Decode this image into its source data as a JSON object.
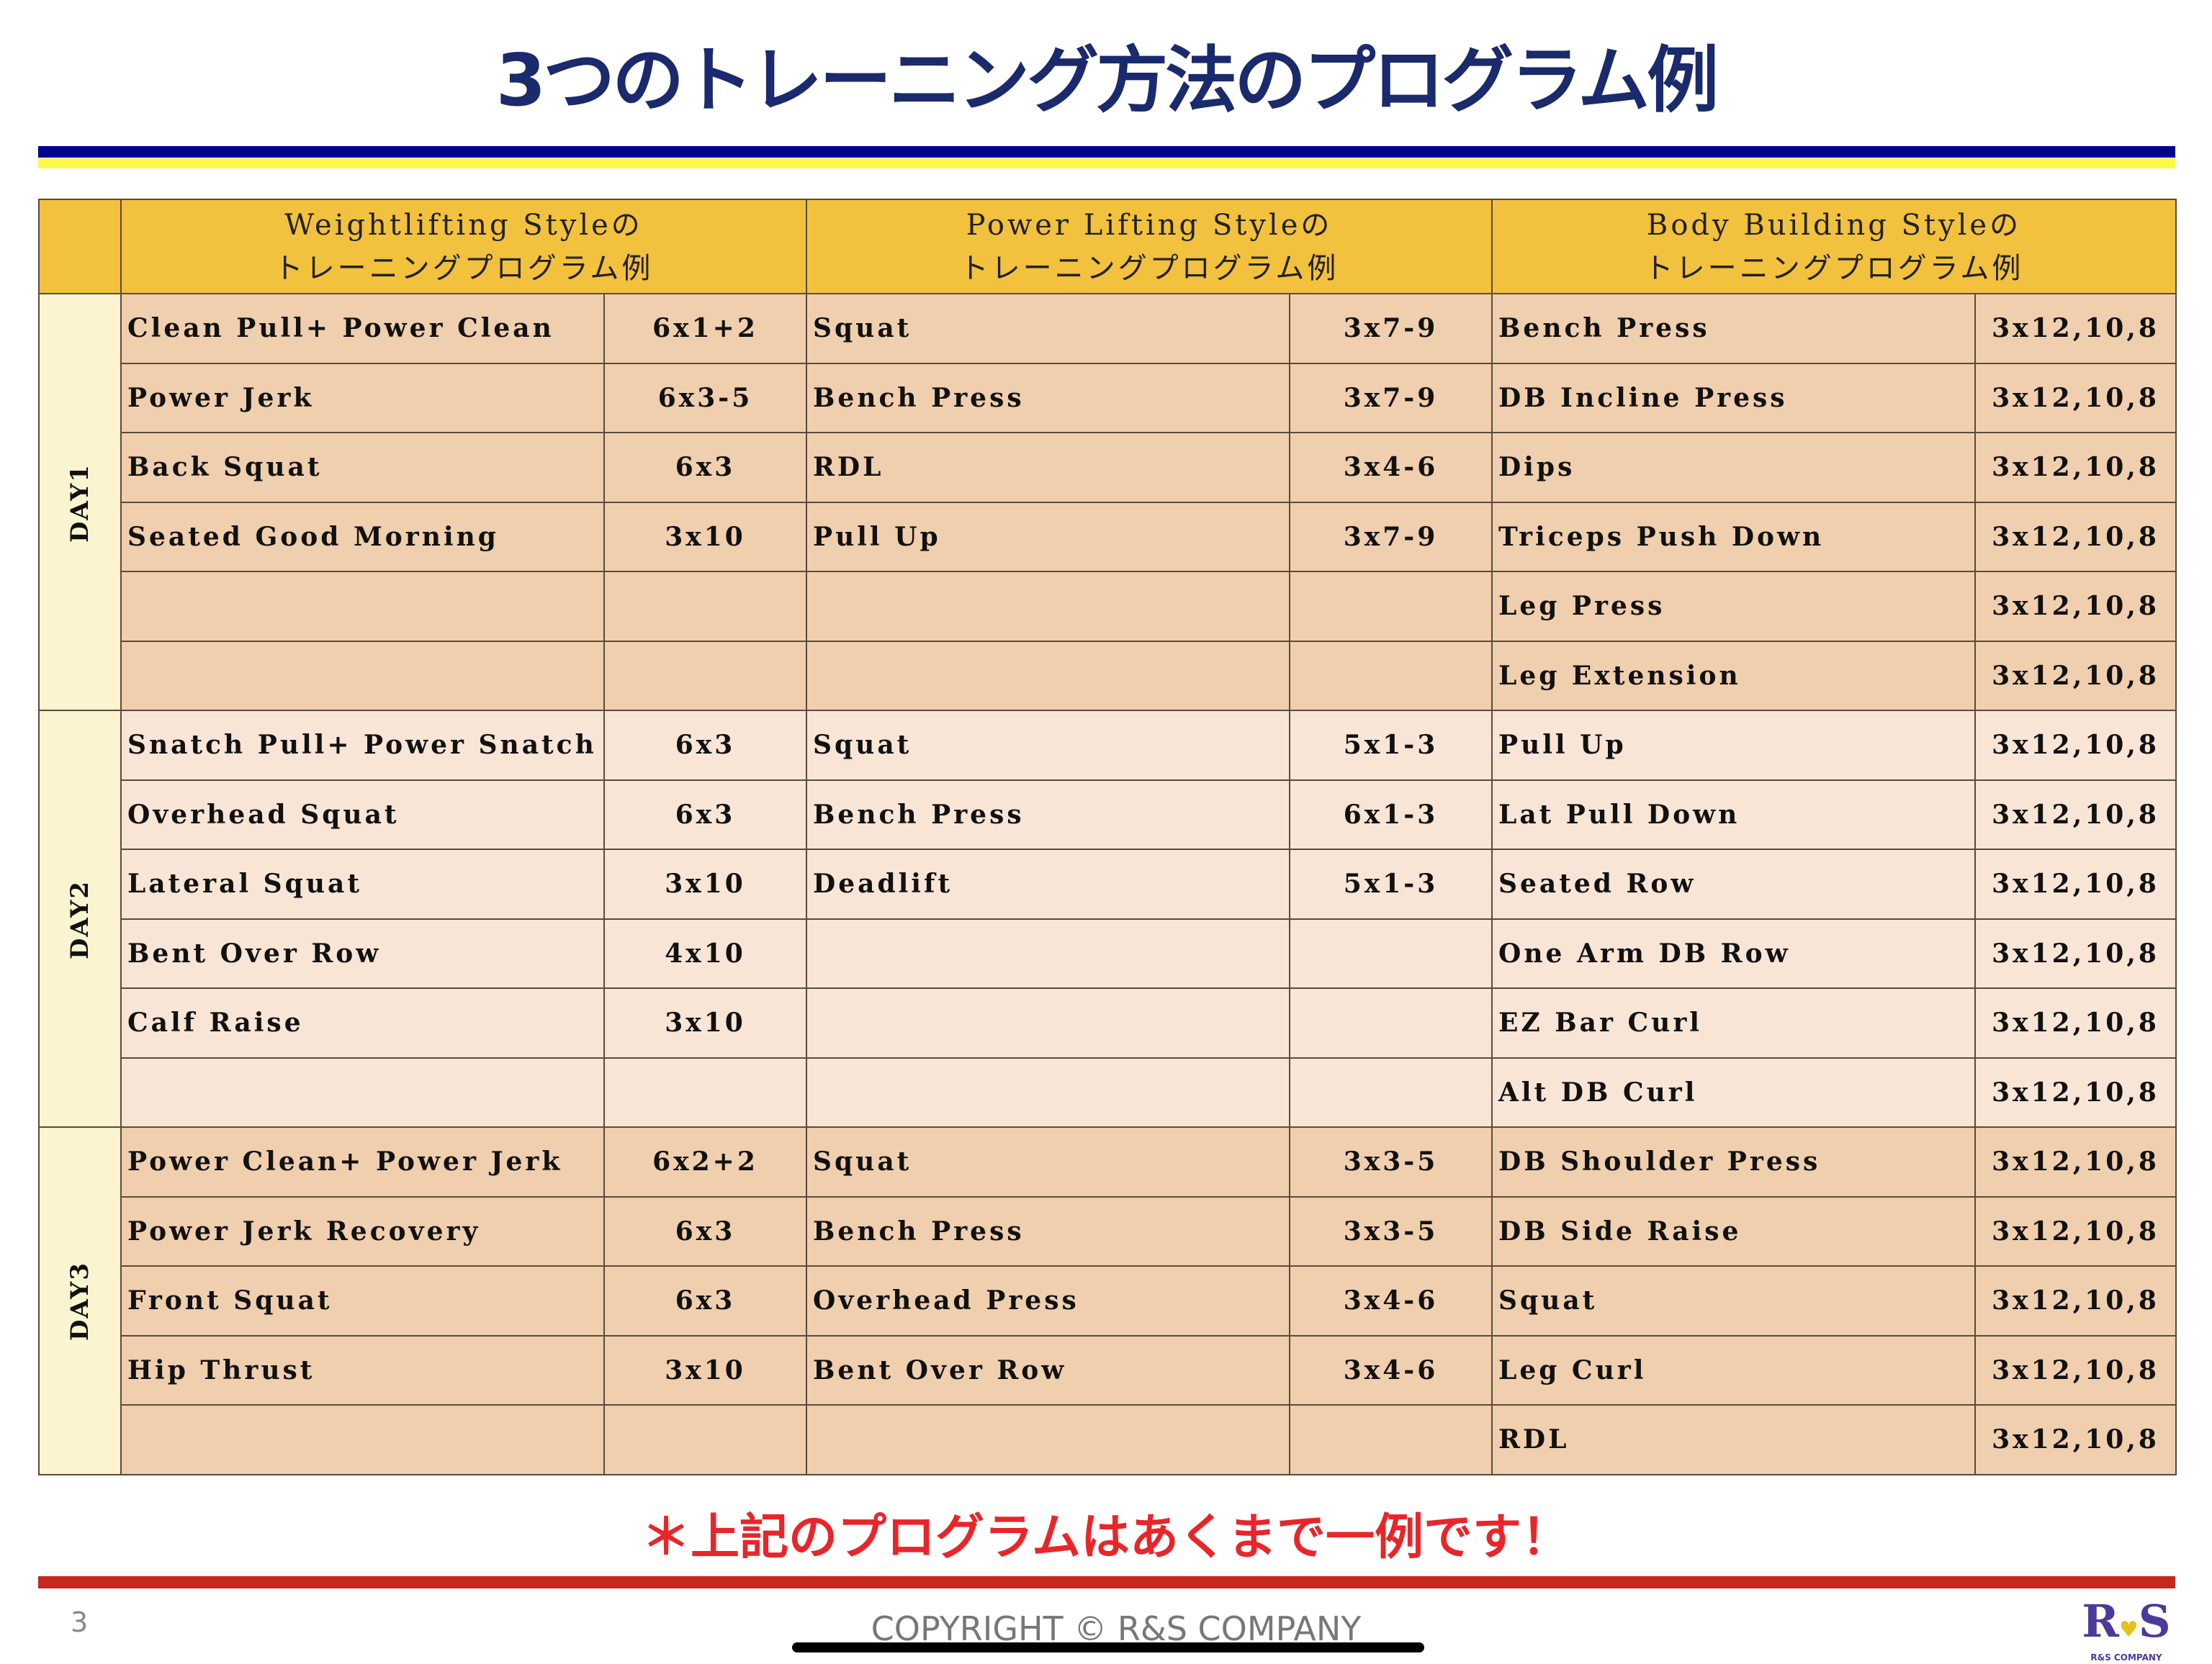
{
  "title": "3つのトレーニング方法のプログラム例",
  "colors": {
    "title": "#1a2a6c",
    "header": "#f2c13e",
    "day1_3_rows": "#f0cfae",
    "day2_rows": "#f8e5d6",
    "day_col": "#fcf3d0",
    "note": "#e8262a"
  },
  "headers": [
    {
      "line1": "Weightlifting Styleの",
      "line2": "トレーニングプログラム例"
    },
    {
      "line1": "Power Lifting Styleの",
      "line2": "トレーニングプログラム例"
    },
    {
      "line1": "Body Building Styleの",
      "line2": "トレーニングプログラム例"
    }
  ],
  "days": [
    {
      "label": "DAY1",
      "rows": [
        [
          "Clean Pull+ Power Clean",
          "6x1+2",
          "Squat",
          "3x7-9",
          "Bench Press",
          "3x12,10,8"
        ],
        [
          "Power Jerk",
          "6x3-5",
          "Bench Press",
          "3x7-9",
          "DB Incline Press",
          "3x12,10,8"
        ],
        [
          "Back Squat",
          "6x3",
          "RDL",
          "3x4-6",
          "Dips",
          "3x12,10,8"
        ],
        [
          "Seated Good Morning",
          "3x10",
          "Pull Up",
          "3x7-9",
          "Triceps Push Down",
          "3x12,10,8"
        ],
        [
          "",
          "",
          "",
          "",
          "Leg Press",
          "3x12,10,8"
        ],
        [
          "",
          "",
          "",
          "",
          "Leg Extension",
          "3x12,10,8"
        ]
      ]
    },
    {
      "label": "DAY2",
      "rows": [
        [
          "Snatch Pull+ Power Snatch",
          "6x3",
          "Squat",
          "5x1-3",
          "Pull Up",
          "3x12,10,8"
        ],
        [
          "Overhead Squat",
          "6x3",
          "Bench Press",
          "6x1-3",
          "Lat Pull Down",
          "3x12,10,8"
        ],
        [
          "Lateral Squat",
          "3x10",
          "Deadlift",
          "5x1-3",
          "Seated Row",
          "3x12,10,8"
        ],
        [
          "Bent Over Row",
          "4x10",
          "",
          "",
          "One Arm DB Row",
          "3x12,10,8"
        ],
        [
          "Calf Raise",
          "3x10",
          "",
          "",
          "EZ Bar Curl",
          "3x12,10,8"
        ],
        [
          "",
          "",
          "",
          "",
          "Alt DB Curl",
          "3x12,10,8"
        ]
      ]
    },
    {
      "label": "DAY3",
      "rows": [
        [
          "Power Clean+ Power Jerk",
          "6x2+2",
          "Squat",
          "3x3-5",
          "DB Shoulder Press",
          "3x12,10,8"
        ],
        [
          "Power Jerk Recovery",
          "6x3",
          "Bench Press",
          "3x3-5",
          "DB Side Raise",
          "3x12,10,8"
        ],
        [
          "Front Squat",
          "6x3",
          "Overhead Press",
          "3x4-6",
          "Squat",
          "3x12,10,8"
        ],
        [
          "Hip Thrust",
          "3x10",
          "Bent Over Row",
          "3x4-6",
          "Leg Curl",
          "3x12,10,8"
        ],
        [
          "",
          "",
          "",
          "",
          "RDL",
          "3x12,10,8"
        ]
      ]
    }
  ],
  "note": "＊上記のプログラムはあくまで一例です！",
  "footer": {
    "page": "3",
    "copyright": "COPYRIGHT © R&S COMPANY",
    "logo_mark": "R&S",
    "logo_text": "R&S COMPANY"
  }
}
